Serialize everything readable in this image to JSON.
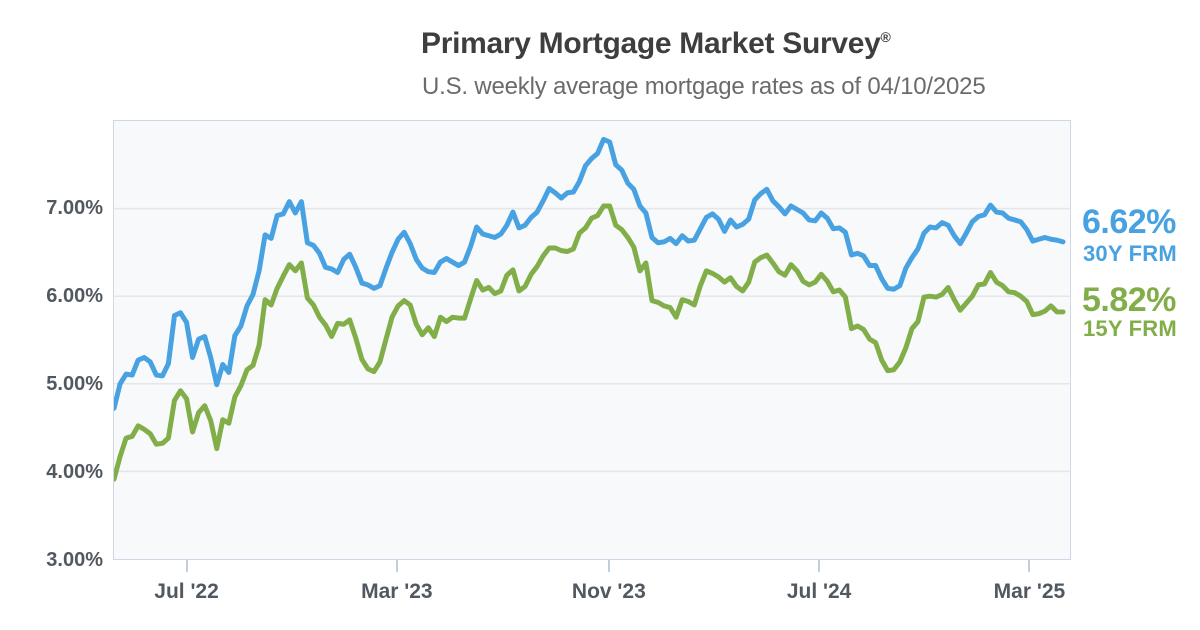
{
  "header": {
    "title": "Primary Mortgage Market Survey",
    "registered": "®",
    "subtitle": "U.S. weekly average mortgage rates as of 04/10/2025"
  },
  "legend": {
    "items": [
      {
        "value": "6.62%",
        "label": "30Y FRM"
      },
      {
        "value": "5.82%",
        "label": "15Y FRM"
      }
    ]
  },
  "theme": {
    "title_color": "#3e3e40",
    "subtitle_color": "#6b6b6d",
    "axis_label_color": "#51585f",
    "grid_color": "#e4e6e9",
    "plot_bg_color": "#f8f9fa",
    "plot_border_color": "#cdd7e6",
    "tick_color": "#c2cede",
    "series_30y_color": "#48a2e2",
    "series_15y_color": "#82ae49"
  },
  "chart_data": {
    "type": "line",
    "title": "Primary Mortgage Market Survey®",
    "subtitle": "U.S. weekly average mortgage rates as of 04/10/2025",
    "x_unit": "weeks",
    "x_start": "2022-04-07",
    "x_end": "2025-04-10",
    "ylim": [
      3.0,
      8.0
    ],
    "grid": true,
    "legend_position": "right-end",
    "y_gridlines": [
      4,
      5,
      6,
      7
    ],
    "y_ticks": [
      {
        "label": "7.00%",
        "value": 7
      },
      {
        "label": "6.00%",
        "value": 6
      },
      {
        "label": "5.00%",
        "value": 5
      },
      {
        "label": "4.00%",
        "value": 4
      },
      {
        "label": "3.00%",
        "value": 3
      }
    ],
    "x_ticks": [
      {
        "label": "Jul '22",
        "week": 12.14
      },
      {
        "label": "Mar '23",
        "week": 46.86
      },
      {
        "label": "Nov '23",
        "week": 81.86
      },
      {
        "label": "Jul '24",
        "week": 116.57
      },
      {
        "label": "Mar '25",
        "week": 151.29
      }
    ],
    "series": [
      {
        "name": "30Y FRM",
        "color": "#48a2e2",
        "latest": "6.62%",
        "values": [
          4.72,
          5.0,
          5.11,
          5.1,
          5.27,
          5.3,
          5.25,
          5.1,
          5.09,
          5.23,
          5.78,
          5.81,
          5.7,
          5.3,
          5.51,
          5.54,
          5.3,
          4.99,
          5.22,
          5.13,
          5.55,
          5.66,
          5.89,
          6.02,
          6.29,
          6.7,
          6.66,
          6.92,
          6.94,
          7.08,
          6.95,
          7.08,
          6.61,
          6.58,
          6.49,
          6.33,
          6.31,
          6.27,
          6.42,
          6.48,
          6.33,
          6.15,
          6.13,
          6.09,
          6.12,
          6.32,
          6.5,
          6.65,
          6.73,
          6.6,
          6.42,
          6.32,
          6.28,
          6.27,
          6.39,
          6.43,
          6.39,
          6.35,
          6.39,
          6.57,
          6.79,
          6.71,
          6.69,
          6.67,
          6.71,
          6.81,
          6.96,
          6.78,
          6.81,
          6.9,
          6.96,
          7.09,
          7.23,
          7.18,
          7.12,
          7.18,
          7.19,
          7.31,
          7.49,
          7.57,
          7.63,
          7.79,
          7.76,
          7.5,
          7.44,
          7.29,
          7.22,
          7.03,
          6.95,
          6.67,
          6.61,
          6.62,
          6.66,
          6.6,
          6.69,
          6.63,
          6.64,
          6.77,
          6.9,
          6.94,
          6.88,
          6.74,
          6.87,
          6.79,
          6.82,
          6.88,
          7.1,
          7.17,
          7.22,
          7.09,
          7.02,
          6.94,
          7.03,
          6.99,
          6.95,
          6.87,
          6.86,
          6.95,
          6.89,
          6.77,
          6.78,
          6.73,
          6.47,
          6.49,
          6.46,
          6.35,
          6.35,
          6.2,
          6.09,
          6.08,
          6.12,
          6.32,
          6.44,
          6.54,
          6.72,
          6.79,
          6.78,
          6.84,
          6.81,
          6.69,
          6.6,
          6.72,
          6.85,
          6.91,
          6.93,
          7.04,
          6.96,
          6.95,
          6.89,
          6.87,
          6.85,
          6.76,
          6.63,
          6.65,
          6.67,
          6.65,
          6.64,
          6.62
        ]
      },
      {
        "name": "15Y FRM",
        "color": "#82ae49",
        "latest": "5.82%",
        "values": [
          3.91,
          4.17,
          4.38,
          4.4,
          4.52,
          4.48,
          4.43,
          4.31,
          4.32,
          4.38,
          4.81,
          4.92,
          4.83,
          4.45,
          4.67,
          4.75,
          4.58,
          4.26,
          4.59,
          4.55,
          4.85,
          4.98,
          5.16,
          5.21,
          5.44,
          5.96,
          5.9,
          6.09,
          6.23,
          6.36,
          6.29,
          6.38,
          5.98,
          5.9,
          5.76,
          5.67,
          5.54,
          5.69,
          5.68,
          5.73,
          5.52,
          5.28,
          5.17,
          5.14,
          5.25,
          5.51,
          5.76,
          5.89,
          5.95,
          5.9,
          5.68,
          5.56,
          5.64,
          5.54,
          5.76,
          5.71,
          5.76,
          5.75,
          5.75,
          5.97,
          6.18,
          6.07,
          6.1,
          6.03,
          6.06,
          6.24,
          6.3,
          6.06,
          6.11,
          6.25,
          6.34,
          6.46,
          6.55,
          6.55,
          6.52,
          6.51,
          6.54,
          6.72,
          6.78,
          6.89,
          6.92,
          7.03,
          7.03,
          6.81,
          6.76,
          6.67,
          6.56,
          6.29,
          6.38,
          5.95,
          5.93,
          5.89,
          5.87,
          5.76,
          5.96,
          5.94,
          5.9,
          6.12,
          6.29,
          6.26,
          6.22,
          6.16,
          6.21,
          6.11,
          6.06,
          6.16,
          6.39,
          6.44,
          6.47,
          6.38,
          6.28,
          6.24,
          6.36,
          6.29,
          6.17,
          6.13,
          6.16,
          6.25,
          6.17,
          6.05,
          6.07,
          5.99,
          5.63,
          5.66,
          5.62,
          5.51,
          5.47,
          5.27,
          5.15,
          5.16,
          5.25,
          5.41,
          5.63,
          5.71,
          5.99,
          6.0,
          5.99,
          6.02,
          6.1,
          5.96,
          5.84,
          5.92,
          6.0,
          6.13,
          6.14,
          6.27,
          6.16,
          6.12,
          6.05,
          6.04,
          6.0,
          5.94,
          5.79,
          5.8,
          5.83,
          5.89,
          5.82,
          5.82
        ]
      }
    ]
  }
}
